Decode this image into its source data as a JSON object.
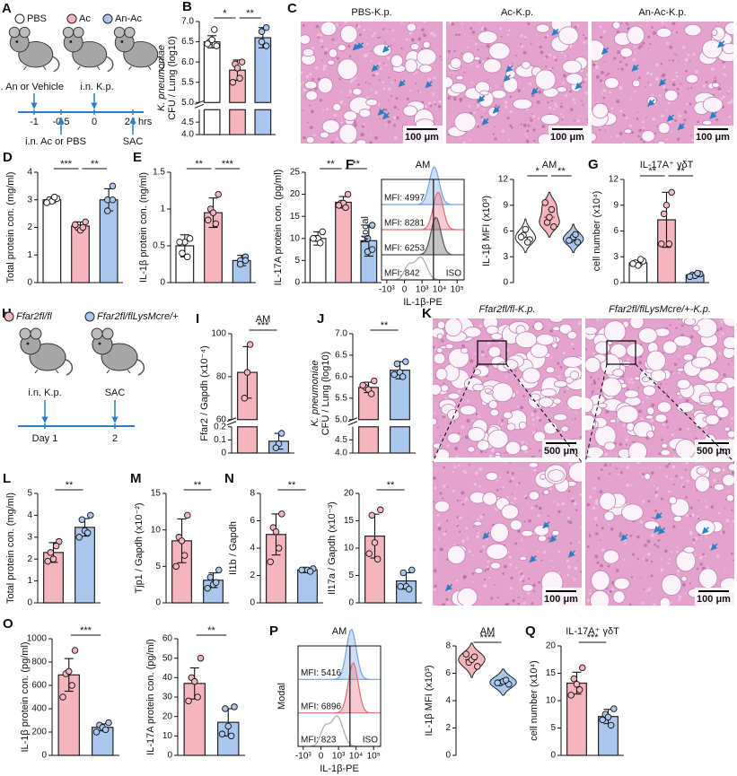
{
  "diagrams": [
    {
      "panel": "A",
      "legend": [
        "PBS",
        "Ac",
        "An-Ac"
      ],
      "colors": [
        "#ffffff",
        "#f5b5bd",
        "#a9c7ec"
      ],
      "timeline": {
        "above": [
          "i.n. An or Vehicle",
          "i.n. K.p."
        ],
        "ticks": [
          "-1",
          "-0.5",
          "0",
          "24 hrs"
        ],
        "below": [
          "i.n. Ac or PBS",
          "SAC"
        ]
      }
    },
    {
      "panel": "H",
      "legend": [
        "Ffar2fl/fl",
        "Ffar2fl/flLysMcre/+"
      ],
      "colors": [
        "#f5b5bd",
        "#a9c7ec"
      ],
      "timeline": {
        "above": [
          "i.n. K.p.",
          "SAC"
        ],
        "ticks": [
          "Day 1",
          "2"
        ]
      }
    }
  ],
  "images": [
    {
      "panel": "C",
      "titles": [
        "PBS-K.p.",
        "Ac-K.p.",
        "An-Ac-K.p."
      ],
      "scale_labels": [
        "100 μm",
        "100 μm",
        "100 μm"
      ]
    },
    {
      "panel": "K",
      "titles": [
        "Ffar2fl/fl-K.p.",
        "Ffar2fl/flLysMcre/+-K.p."
      ],
      "scale_labels": [
        "500 μm",
        "500 μm",
        "100 μm",
        "100 μm"
      ]
    }
  ],
  "chart_data": [
    {
      "type": "bar",
      "panel": "B",
      "ylabel": [
        "K. pneumoniae",
        "CFU / Lung (log10)"
      ],
      "segments": [
        {
          "ylim": [
            4,
            5
          ],
          "yticks": [
            {
              "value": 4,
              "label": "4.0"
            },
            4.5
          ]
        },
        {
          "ylim": [
            5,
            7
          ],
          "yticks": [
            {
              "value": 5,
              "label": "5.0"
            },
            5.5,
            {
              "value": 6,
              "label": "6.0"
            },
            6.5,
            {
              "value": 7,
              "label": "7.0"
            }
          ]
        }
      ],
      "values": [
        6.5,
        5.8,
        6.6
      ],
      "errors": [
        0.15,
        0.25,
        0.25
      ],
      "points": [
        [
          6.4,
          6.5,
          6.55,
          6.8,
          6.45
        ],
        [
          6.0,
          5.95,
          5.85,
          5.6,
          5.5
        ],
        [
          6.85,
          6.75,
          6.5,
          6.4
        ]
      ],
      "colors": [
        "#ffffff",
        "#f5b5bd",
        "#a9c7ec"
      ],
      "significance": [
        {
          "label": "*",
          "between": [
            0,
            1
          ]
        },
        {
          "label": "**",
          "between": [
            1,
            2
          ]
        }
      ]
    },
    {
      "type": "bar",
      "panel": "D",
      "ylabel": "Total protein con. (mg/ml)",
      "ylim": [
        0,
        4
      ],
      "yticks": [
        0,
        1,
        2,
        3,
        4
      ],
      "values": [
        3.0,
        2.05,
        3.0
      ],
      "errors": [
        0.1,
        0.15,
        0.4
      ],
      "points": [
        [
          3.05,
          3.0,
          2.95,
          3.1,
          2.9
        ],
        [
          2.2,
          2.0,
          1.9,
          2.0,
          2.1
        ],
        [
          3.5,
          3.0,
          2.6,
          3.0
        ]
      ],
      "colors": [
        "#ffffff",
        "#f5b5bd",
        "#a9c7ec"
      ],
      "significance": [
        {
          "label": "***",
          "between": [
            0,
            1
          ]
        },
        {
          "label": "**",
          "between": [
            1,
            2
          ]
        }
      ]
    },
    {
      "type": "bar",
      "panel": "E",
      "ylabel": "IL-1β protein con. (ng/ml)",
      "ylim": [
        0,
        1.5
      ],
      "yticks": [
        0,
        0.5,
        1,
        1.5
      ],
      "values": [
        0.5,
        0.95,
        0.3
      ],
      "errors": [
        0.15,
        0.2,
        0.07
      ],
      "points": [
        [
          0.6,
          0.4,
          0.55,
          0.35,
          0.55
        ],
        [
          1.2,
          1.0,
          0.95,
          0.8,
          0.85
        ],
        [
          0.35,
          0.3,
          0.25,
          0.3
        ]
      ],
      "colors": [
        "#ffffff",
        "#f5b5bd",
        "#a9c7ec"
      ],
      "significance": [
        {
          "label": "**",
          "between": [
            0,
            1
          ]
        },
        {
          "label": "***",
          "between": [
            1,
            2
          ]
        }
      ]
    },
    {
      "type": "bar",
      "ylabel": "IL-17A protein con. (pg/ml)",
      "ylim": [
        0,
        25
      ],
      "yticks": [
        0,
        5,
        10,
        15,
        20,
        25
      ],
      "values": [
        10,
        18.2,
        9.5
      ],
      "errors": [
        1.5,
        1.3,
        3.5
      ],
      "points": [
        [
          11.5,
          10,
          10,
          9,
          10
        ],
        [
          20,
          18,
          18,
          17,
          17.5
        ],
        [
          13,
          10,
          7,
          7.5
        ]
      ],
      "colors": [
        "#ffffff",
        "#f5b5bd",
        "#a9c7ec"
      ],
      "significance": [
        {
          "label": "**",
          "between": [
            0,
            1
          ]
        },
        {
          "label": "**",
          "between": [
            1,
            2
          ]
        }
      ]
    },
    {
      "type": "flow",
      "panel": "F",
      "title": "AM",
      "ylabel": "Modal",
      "xlabel": "IL-1β-PE",
      "xlim": [
        -2000,
        250000
      ],
      "xticks": [
        {
          "value": -1000,
          "label": "-10³"
        },
        0,
        {
          "value": 1000,
          "label": "10³"
        },
        {
          "value": 10000,
          "label": "10⁴"
        },
        {
          "value": 100000,
          "label": "10⁵"
        }
      ],
      "mfi": [
        4997,
        8281,
        6253,
        842
      ],
      "value_labels": [
        "MFI: 4997",
        "MFI: 8281",
        "MFI: 6253",
        "MFI: 842"
      ],
      "colors": [
        "#6fa3e3",
        "#e46a7a",
        "#555555",
        "#aaaaaa"
      ],
      "iso_label": "ISO",
      "gate": 4500
    },
    {
      "type": "violin",
      "title": "AM",
      "ylabel": "IL-1β MFI (x10³)",
      "ylim": [
        0,
        12
      ],
      "yticks": [
        0,
        3,
        6,
        9,
        12
      ],
      "values": [
        5.3,
        7.6,
        5.0
      ],
      "points": [
        [
          5.0,
          5.5,
          6.2,
          4.7,
          5.3
        ],
        [
          6.5,
          7.0,
          7.6,
          8.5,
          9.3
        ],
        [
          4.7,
          5.0,
          5.3,
          5.6,
          4.9
        ]
      ],
      "colors": [
        "#ffffff",
        "#f5b5bd",
        "#a9c7ec"
      ],
      "significance": [
        {
          "label": "*",
          "between": [
            0,
            1
          ]
        },
        {
          "label": "**",
          "between": [
            1,
            2
          ]
        }
      ]
    },
    {
      "type": "bar",
      "panel": "G",
      "title": "IL-17A⁺ γδT",
      "ylabel": "cell number (x10⁴)",
      "ylim": [
        0,
        12
      ],
      "yticks": [
        0,
        3,
        6,
        9,
        12
      ],
      "values": [
        2.3,
        7.3,
        0.9
      ],
      "errors": [
        0.3,
        3.2,
        0.2
      ],
      "points": [
        [
          2.5,
          2.3,
          2.0,
          2.7,
          2.2
        ],
        [
          10.5,
          8,
          9,
          4.5,
          4.5
        ],
        [
          1.0,
          0.9,
          0.8,
          1.1,
          0.7
        ]
      ],
      "colors": [
        "#ffffff",
        "#f5b5bd",
        "#a9c7ec"
      ],
      "significance": [
        {
          "label": "**",
          "between": [
            0,
            1
          ]
        },
        {
          "label": "**",
          "between": [
            1,
            2
          ]
        }
      ]
    },
    {
      "type": "bar",
      "panel": "I",
      "title": "AM",
      "ylabel": "Ffar2 / Gapdh (x10⁻⁴)",
      "segments": [
        {
          "ylim": [
            0,
            0.2
          ],
          "yticks": [
            0,
            0.1,
            0.2
          ]
        },
        {
          "ylim": [
            60,
            100
          ],
          "yticks": [
            60,
            80,
            100
          ]
        }
      ],
      "values": [
        82,
        0.09
      ],
      "errors": [
        12,
        0.06
      ],
      "points": [
        [
          95,
          82,
          70
        ],
        [
          0.15,
          0.07,
          0.04
        ]
      ],
      "colors": [
        "#f5b5bd",
        "#a9c7ec"
      ],
      "significance": [
        {
          "label": "***",
          "between": [
            0,
            1
          ]
        }
      ]
    },
    {
      "type": "bar",
      "panel": "J",
      "ylabel": [
        "K. pneumoniae",
        "CFU / Lung (log10)"
      ],
      "segments": [
        {
          "ylim": [
            4,
            5
          ],
          "yticks": [
            {
              "value": 4,
              "label": "4.0"
            },
            4.5
          ]
        },
        {
          "ylim": [
            5,
            7
          ],
          "yticks": [
            {
              "value": 5,
              "label": "5.0"
            },
            5.5,
            {
              "value": 6,
              "label": "6.0"
            },
            6.5,
            {
              "value": 7,
              "label": "7.0"
            }
          ]
        }
      ],
      "values": [
        5.75,
        6.15
      ],
      "errors": [
        0.12,
        0.2
      ],
      "points": [
        [
          5.9,
          5.75,
          5.7,
          5.6,
          5.8
        ],
        [
          6.35,
          6.3,
          6.1,
          6.0,
          6.05
        ]
      ],
      "colors": [
        "#f5b5bd",
        "#a9c7ec"
      ],
      "significance": [
        {
          "label": "**",
          "between": [
            0,
            1
          ]
        }
      ]
    },
    {
      "type": "bar",
      "panel": "L",
      "ylabel": "Total protein con. (mg/ml)",
      "ylim": [
        0,
        5
      ],
      "yticks": [
        0,
        1,
        2,
        3,
        4,
        5
      ],
      "values": [
        2.3,
        3.45
      ],
      "errors": [
        0.45,
        0.4
      ],
      "points": [
        [
          2.8,
          2.3,
          2.0,
          2.6,
          1.9
        ],
        [
          4.0,
          3.8,
          3.3,
          3.2,
          3.0
        ]
      ],
      "colors": [
        "#f5b5bd",
        "#a9c7ec"
      ],
      "significance": [
        {
          "label": "**",
          "between": [
            0,
            1
          ]
        }
      ]
    },
    {
      "type": "bar",
      "panel": "M",
      "ylabel": "Tjp1 / Gapdh (x10⁻²)",
      "ylim": [
        0,
        15
      ],
      "yticks": [
        0,
        5,
        10,
        15
      ],
      "values": [
        8.5,
        3.1
      ],
      "errors": [
        3.0,
        1.0
      ],
      "points": [
        [
          12,
          9,
          8.5,
          6.5,
          5
        ],
        [
          4.5,
          3.5,
          2.5,
          2.8,
          2.0
        ]
      ],
      "colors": [
        "#f5b5bd",
        "#a9c7ec"
      ],
      "significance": [
        {
          "label": "**",
          "between": [
            0,
            1
          ]
        }
      ]
    },
    {
      "type": "bar",
      "panel": "N",
      "ylabel": "Il1b / Gapdh",
      "ylim": [
        0,
        8
      ],
      "yticks": [
        0,
        2,
        4,
        6,
        8
      ],
      "values": [
        5.0,
        2.4
      ],
      "errors": [
        1.5,
        0.1
      ],
      "points": [
        [
          6.5,
          5.5,
          5.2,
          4.0,
          3.0
        ],
        [
          2.5,
          2.4,
          2.4,
          2.3,
          2.4
        ]
      ],
      "colors": [
        "#f5b5bd",
        "#a9c7ec"
      ],
      "significance": [
        {
          "label": "**",
          "between": [
            0,
            1
          ]
        }
      ]
    },
    {
      "type": "bar",
      "ylabel": "Il17a / Gapdh (x10⁻³)",
      "ylim": [
        0,
        20
      ],
      "yticks": [
        0,
        5,
        10,
        15,
        20
      ],
      "values": [
        12.2,
        4.0
      ],
      "errors": [
        4,
        1.5
      ],
      "points": [
        [
          17,
          16,
          11,
          8,
          9
        ],
        [
          6,
          5.5,
          3,
          2.5,
          3
        ]
      ],
      "colors": [
        "#f5b5bd",
        "#a9c7ec"
      ],
      "significance": [
        {
          "label": "**",
          "between": [
            0,
            1
          ]
        }
      ]
    },
    {
      "type": "bar",
      "panel": "O",
      "ylabel": "IL-1β protein con. (pg/ml)",
      "ylim": [
        0,
        1000
      ],
      "yticks": [
        0,
        200,
        400,
        600,
        800,
        1000
      ],
      "values": [
        690,
        240
      ],
      "errors": [
        140,
        30
      ],
      "points": [
        [
          900,
          700,
          720,
          600,
          500
        ],
        [
          280,
          260,
          240,
          220,
          200
        ]
      ],
      "colors": [
        "#f5b5bd",
        "#a9c7ec"
      ],
      "significance": [
        {
          "label": "***",
          "between": [
            0,
            1
          ]
        }
      ]
    },
    {
      "type": "bar",
      "ylabel": "IL-17A protein con. (pg/ml)",
      "ylim": [
        0,
        60
      ],
      "yticks": [
        0,
        10,
        20,
        30,
        40,
        50,
        60
      ],
      "values": [
        37,
        17
      ],
      "errors": [
        8,
        7
      ],
      "points": [
        [
          50,
          40,
          38,
          30,
          28
        ],
        [
          25,
          24,
          15,
          10,
          11
        ]
      ],
      "colors": [
        "#f5b5bd",
        "#a9c7ec"
      ],
      "significance": [
        {
          "label": "**",
          "between": [
            0,
            1
          ]
        }
      ]
    },
    {
      "type": "flow",
      "panel": "P",
      "title": "AM",
      "ylabel": "Modal",
      "xlabel": "IL-1β-PE",
      "xlim": [
        -2000,
        250000
      ],
      "xticks": [
        {
          "value": -1000,
          "label": "-10³"
        },
        0,
        {
          "value": 1000,
          "label": "10³"
        },
        {
          "value": 10000,
          "label": "10⁴"
        },
        {
          "value": 100000,
          "label": "10⁵"
        }
      ],
      "mfi": [
        5416,
        6896,
        823
      ],
      "value_labels": [
        "MFI: 5416",
        "MFI: 6896",
        "MFI: 823"
      ],
      "colors": [
        "#6fa3e3",
        "#e46a7a",
        "#aaaaaa"
      ],
      "iso_label": "ISO",
      "gate": 4500
    },
    {
      "type": "violin",
      "title": "AM",
      "ylabel": "IL-1β MFI (x10³)",
      "ylim": [
        0,
        8
      ],
      "yticks": [
        0,
        2,
        4,
        6,
        8
      ],
      "values": [
        7.0,
        5.3
      ],
      "points": [
        [
          6.5,
          6.8,
          7.0,
          7.2,
          7.4
        ],
        [
          5.2,
          5.3,
          5.4,
          5.5,
          5.3
        ]
      ],
      "colors": [
        "#f5b5bd",
        "#a9c7ec"
      ],
      "significance": [
        {
          "label": "****",
          "between": [
            0,
            1
          ]
        }
      ]
    },
    {
      "type": "bar",
      "panel": "Q",
      "title": "IL-17A⁺ γδT",
      "ylabel": "cell number (x10⁴)",
      "ylim": [
        0,
        20
      ],
      "yticks": [
        0,
        5,
        10,
        15,
        20
      ],
      "values": [
        13.2,
        7.1
      ],
      "errors": [
        2,
        1.3
      ],
      "points": [
        [
          16,
          14,
          13,
          12,
          11
        ],
        [
          8.5,
          7.5,
          7,
          5.5,
          6.5
        ]
      ],
      "colors": [
        "#f5b5bd",
        "#a9c7ec"
      ],
      "significance": [
        {
          "label": "***",
          "between": [
            0,
            1
          ]
        }
      ]
    }
  ]
}
